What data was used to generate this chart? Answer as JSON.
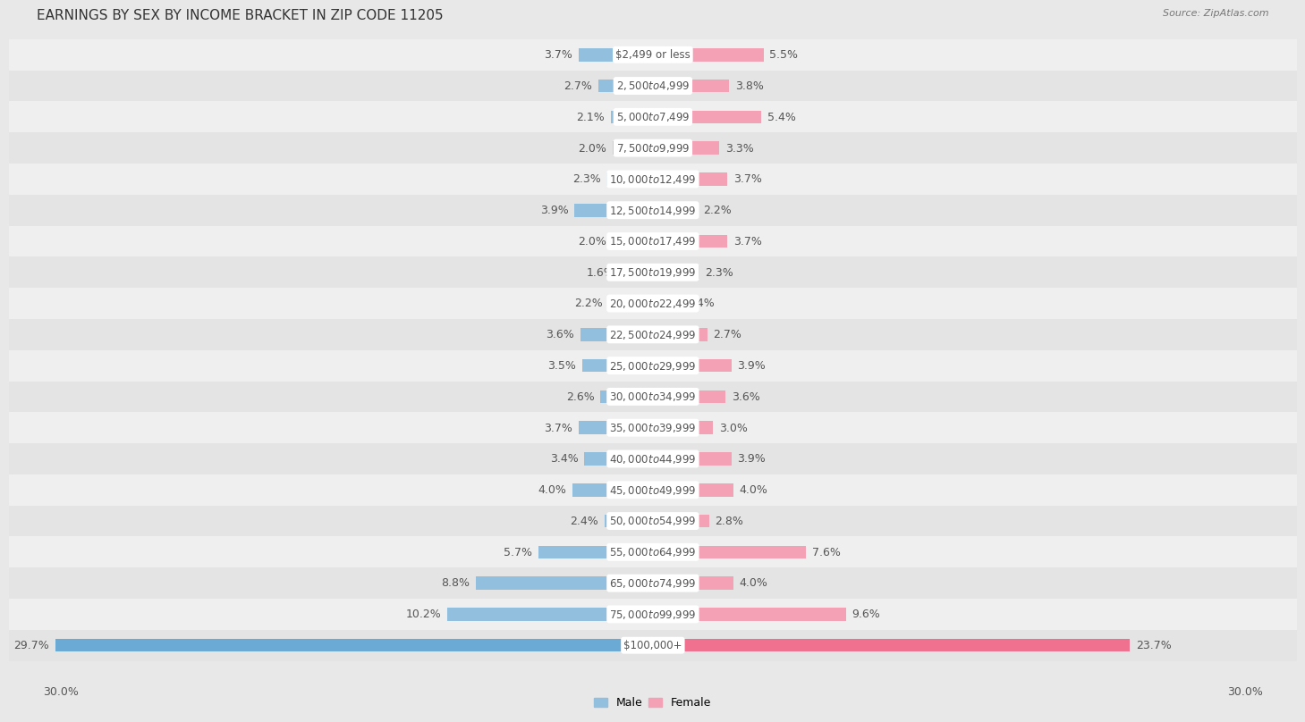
{
  "title": "EARNINGS BY SEX BY INCOME BRACKET IN ZIP CODE 11205",
  "source": "Source: ZipAtlas.com",
  "categories": [
    "$2,499 or less",
    "$2,500 to $4,999",
    "$5,000 to $7,499",
    "$7,500 to $9,999",
    "$10,000 to $12,499",
    "$12,500 to $14,999",
    "$15,000 to $17,499",
    "$17,500 to $19,999",
    "$20,000 to $22,499",
    "$22,500 to $24,999",
    "$25,000 to $29,999",
    "$30,000 to $34,999",
    "$35,000 to $39,999",
    "$40,000 to $44,999",
    "$45,000 to $49,999",
    "$50,000 to $54,999",
    "$55,000 to $64,999",
    "$65,000 to $74,999",
    "$75,000 to $99,999",
    "$100,000+"
  ],
  "male_values": [
    3.7,
    2.7,
    2.1,
    2.0,
    2.3,
    3.9,
    2.0,
    1.6,
    2.2,
    3.6,
    3.5,
    2.6,
    3.7,
    3.4,
    4.0,
    2.4,
    5.7,
    8.8,
    10.2,
    29.7
  ],
  "female_values": [
    5.5,
    3.8,
    5.4,
    3.3,
    3.7,
    2.2,
    3.7,
    2.3,
    1.4,
    2.7,
    3.9,
    3.6,
    3.0,
    3.9,
    4.0,
    2.8,
    7.6,
    4.0,
    9.6,
    23.7
  ],
  "male_color": "#92bfde",
  "female_color": "#f4a0b5",
  "male_last_color": "#6aaad4",
  "female_last_color": "#f07090",
  "row_bg_light": "#e8e8e8",
  "row_bg_white": "#f5f5f5",
  "background_color": "#e8e8e8",
  "title_fontsize": 11,
  "label_fontsize": 9,
  "category_fontsize": 8.5,
  "legend_fontsize": 9,
  "xlim": 30.0,
  "bottom_labels": [
    "30.0%",
    "30.0%"
  ]
}
